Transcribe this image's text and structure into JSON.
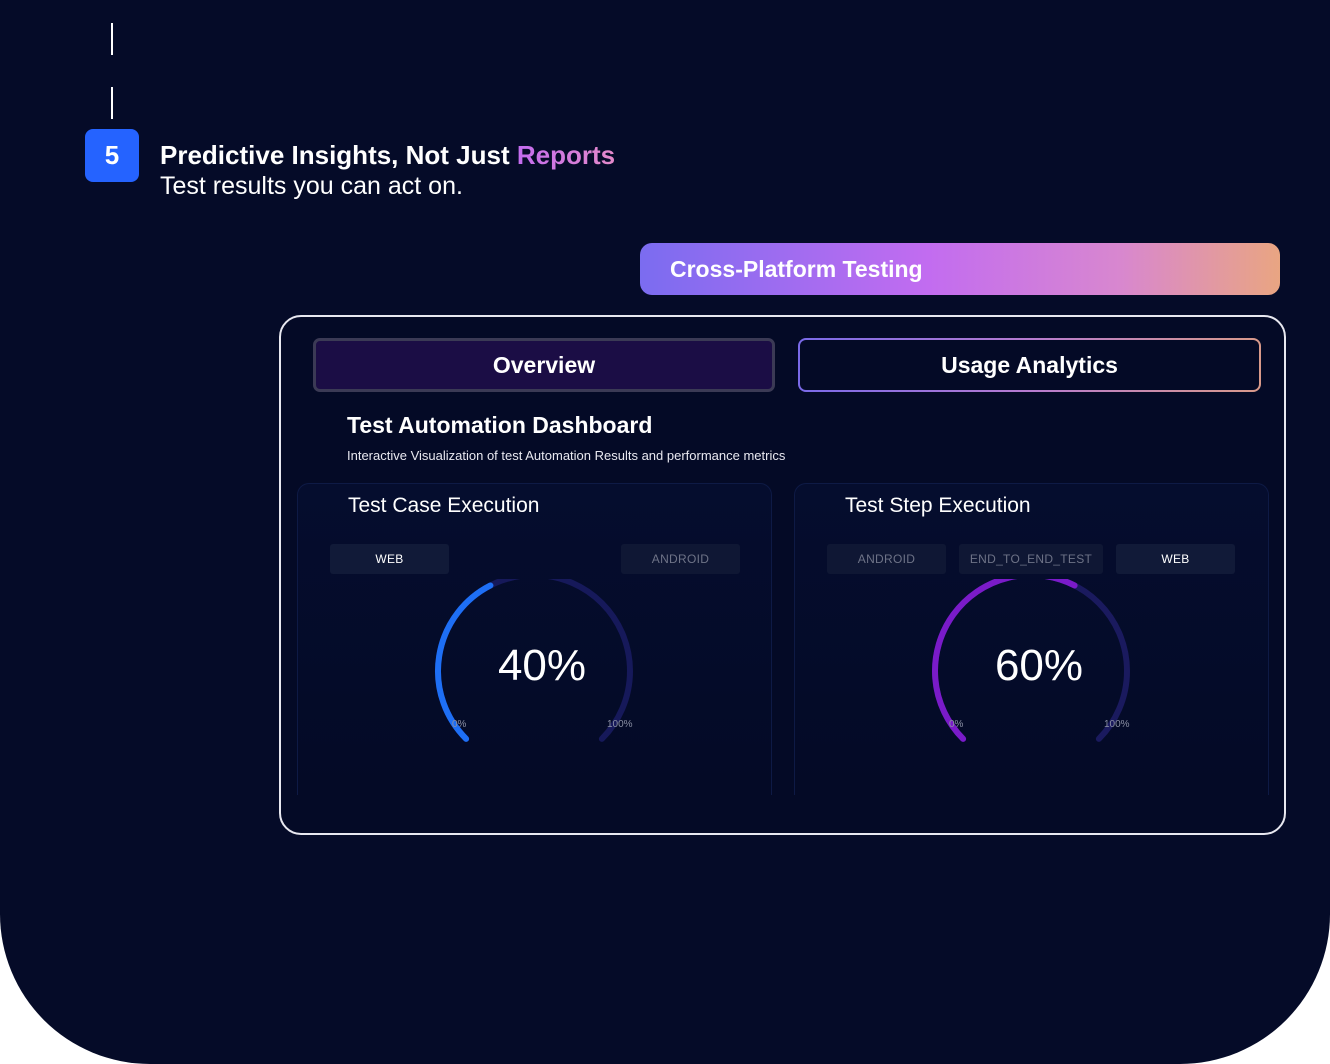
{
  "step": {
    "number": "5"
  },
  "heading": {
    "title_main": "Predictive Insights, Not Just ",
    "title_accent": "Reports",
    "subtitle": "Test results you can act on."
  },
  "banner": {
    "label": "Cross-Platform Testing"
  },
  "tabs": [
    {
      "label": "Overview",
      "active": true
    },
    {
      "label": "Usage Analytics",
      "active": false
    }
  ],
  "dashboard": {
    "title": "Test Automation Dashboard",
    "subtitle": "Interactive Visualization of test Automation Results and performance metrics"
  },
  "cards": [
    {
      "title": "Test Case Execution",
      "chips": [
        {
          "label": "WEB",
          "active": true
        },
        {
          "label": "ANDROID",
          "active": false
        }
      ],
      "gauge": {
        "value": 40,
        "display": "40%",
        "min_label": "0%",
        "max_label": "100%",
        "color": "#1e6ff5",
        "track_color": "#16195a"
      }
    },
    {
      "title": "Test Step Execution",
      "chips": [
        {
          "label": "ANDROID",
          "active": false
        },
        {
          "label": "END_TO_END_TEST",
          "active": false
        },
        {
          "label": "WEB",
          "active": true
        }
      ],
      "gauge": {
        "value": 60,
        "display": "60%",
        "min_label": "0%",
        "max_label": "100%",
        "color": "#7a1bc9",
        "track_color": "#1a1a5e"
      }
    }
  ],
  "colors": {
    "background": "#050b28",
    "badge": "#2563ff",
    "overview_tab": "#1b0d45"
  }
}
